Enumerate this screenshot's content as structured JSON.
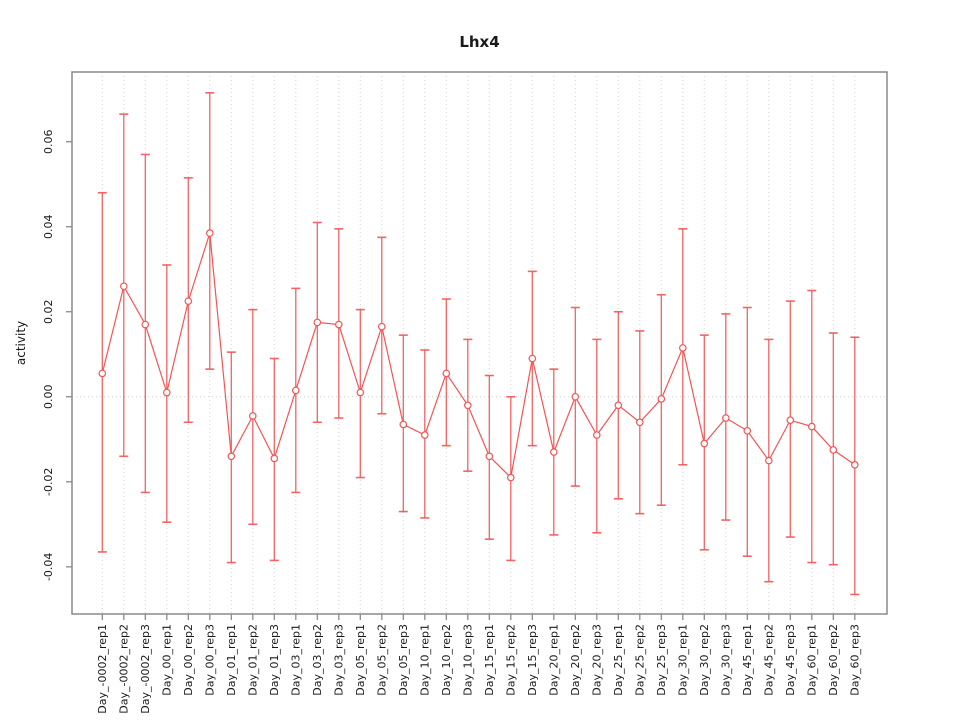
{
  "page": {
    "background": "#ffffff"
  },
  "chart_data": {
    "type": "line",
    "title": "Lhx4",
    "xlabel": "",
    "ylabel": "activity",
    "legend": "none",
    "grid": {
      "vertical": "dotted",
      "horizontal": "zero-line-dotted"
    },
    "ylim": [
      -0.0511,
      0.0764
    ],
    "yticks": [
      -0.04,
      -0.02,
      0.0,
      0.02,
      0.04,
      0.06
    ],
    "ytick_labels": [
      "-0.04",
      "-0.02",
      "0.00",
      "0.02",
      "0.04",
      "0.06"
    ],
    "categories": [
      "Day_-0002_rep1",
      "Day_-0002_rep2",
      "Day_-0002_rep3",
      "Day_00_rep1",
      "Day_00_rep2",
      "Day_00_rep3",
      "Day_01_rep1",
      "Day_01_rep2",
      "Day_01_rep3",
      "Day_03_rep1",
      "Day_03_rep2",
      "Day_03_rep3",
      "Day_05_rep1",
      "Day_05_rep2",
      "Day_05_rep3",
      "Day_10_rep1",
      "Day_10_rep2",
      "Day_10_rep3",
      "Day_15_rep1",
      "Day_15_rep2",
      "Day_15_rep3",
      "Day_20_rep1",
      "Day_20_rep2",
      "Day_20_rep3",
      "Day_25_rep1",
      "Day_25_rep2",
      "Day_25_rep3",
      "Day_30_rep1",
      "Day_30_rep2",
      "Day_30_rep3",
      "Day_45_rep1",
      "Day_45_rep2",
      "Day_45_rep3",
      "Day_60_rep1",
      "Day_60_rep2",
      "Day_60_rep3"
    ],
    "series": [
      {
        "name": "activity",
        "marker": "open-circle",
        "values": [
          0.0055,
          0.026,
          0.017,
          0.001,
          0.0225,
          0.0385,
          -0.014,
          -0.0045,
          -0.0145,
          0.0015,
          0.0175,
          0.017,
          0.001,
          0.0165,
          -0.0065,
          -0.009,
          0.0055,
          -0.002,
          -0.014,
          -0.019,
          0.009,
          -0.013,
          0.0,
          -0.009,
          -0.002,
          -0.006,
          -0.0005,
          0.0115,
          -0.011,
          -0.005,
          -0.008,
          -0.015,
          -0.0055,
          -0.007,
          -0.0125,
          -0.016
        ],
        "error_high": [
          0.048,
          0.0665,
          0.057,
          0.031,
          0.0515,
          0.0715,
          0.0105,
          0.0205,
          0.009,
          0.0255,
          0.041,
          0.0395,
          0.0205,
          0.0375,
          0.0145,
          0.011,
          0.023,
          0.0135,
          0.005,
          0.0,
          0.0295,
          0.0065,
          0.021,
          0.0135,
          0.02,
          0.0155,
          0.024,
          0.0395,
          0.0145,
          0.0195,
          0.021,
          0.0135,
          0.0225,
          0.025,
          0.015,
          0.014
        ],
        "error_low": [
          -0.0365,
          -0.014,
          -0.0225,
          -0.0295,
          -0.006,
          0.0065,
          -0.039,
          -0.03,
          -0.0385,
          -0.0225,
          -0.006,
          -0.005,
          -0.019,
          -0.004,
          -0.027,
          -0.0285,
          -0.0115,
          -0.0175,
          -0.0335,
          -0.0385,
          -0.0115,
          -0.0325,
          -0.021,
          -0.032,
          -0.024,
          -0.0275,
          -0.0255,
          -0.016,
          -0.036,
          -0.029,
          -0.0375,
          -0.0435,
          -0.033,
          -0.039,
          -0.0395,
          -0.0465
        ]
      }
    ],
    "colors": {
      "series": "#f25555",
      "grid": "#d4d4d4",
      "zero_line": "#cfcfcf",
      "axis_box": "#8a8a8a",
      "tick": "#8a8a8a",
      "label": "#1a1a1a"
    }
  }
}
